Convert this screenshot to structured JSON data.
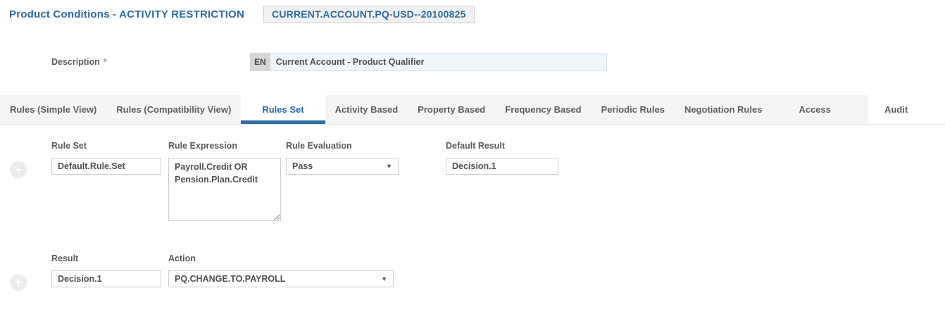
{
  "header": {
    "title": "Product Conditions - ACTIVITY RESTRICTION",
    "record_id": "CURRENT.ACCOUNT.PQ-USD--20100825"
  },
  "description": {
    "label": "Description",
    "required_marker": "*",
    "language_code": "EN",
    "value": "Current Account - Product Qualifier"
  },
  "tabs": {
    "items": [
      {
        "label": "Rules (Simple View)",
        "active": false
      },
      {
        "label": "Rules (Compatibility View)",
        "active": false
      },
      {
        "label": "Rules Set",
        "active": true
      },
      {
        "label": "Activity Based",
        "active": false
      },
      {
        "label": "Property Based",
        "active": false
      },
      {
        "label": "Frequency Based",
        "active": false
      },
      {
        "label": "Periodic Rules",
        "active": false
      },
      {
        "label": "Negotiation Rules",
        "active": false
      },
      {
        "label": "Access",
        "active": false
      },
      {
        "label": "Audit",
        "active": false
      }
    ]
  },
  "rule_set_section": {
    "fields": {
      "rule_set": {
        "label": "Rule Set",
        "value": "Default.Rule.Set"
      },
      "rule_expression": {
        "label": "Rule Expression",
        "value": "Payroll.Credit OR\nPension.Plan.Credit"
      },
      "rule_evaluation": {
        "label": "Rule Evaluation",
        "value": "Pass"
      },
      "default_result": {
        "label": "Default Result",
        "value": "Decision.1"
      }
    }
  },
  "result_action_section": {
    "fields": {
      "result": {
        "label": "Result",
        "value": "Decision.1"
      },
      "action": {
        "label": "Action",
        "value": "PQ.CHANGE.TO.PAYROLL"
      }
    }
  },
  "icons": {
    "plus": "+",
    "dropdown_arrow": "▼"
  },
  "colors": {
    "accent_blue": "#2a6aa8",
    "active_tab_underline": "#2e6da4",
    "tabbar_background": "#f4f4f4",
    "label_gray": "#5a5a5a",
    "input_border": "#cccccc",
    "description_input_background": "#eff6fa",
    "language_prefix_background": "#d7d7d7"
  }
}
